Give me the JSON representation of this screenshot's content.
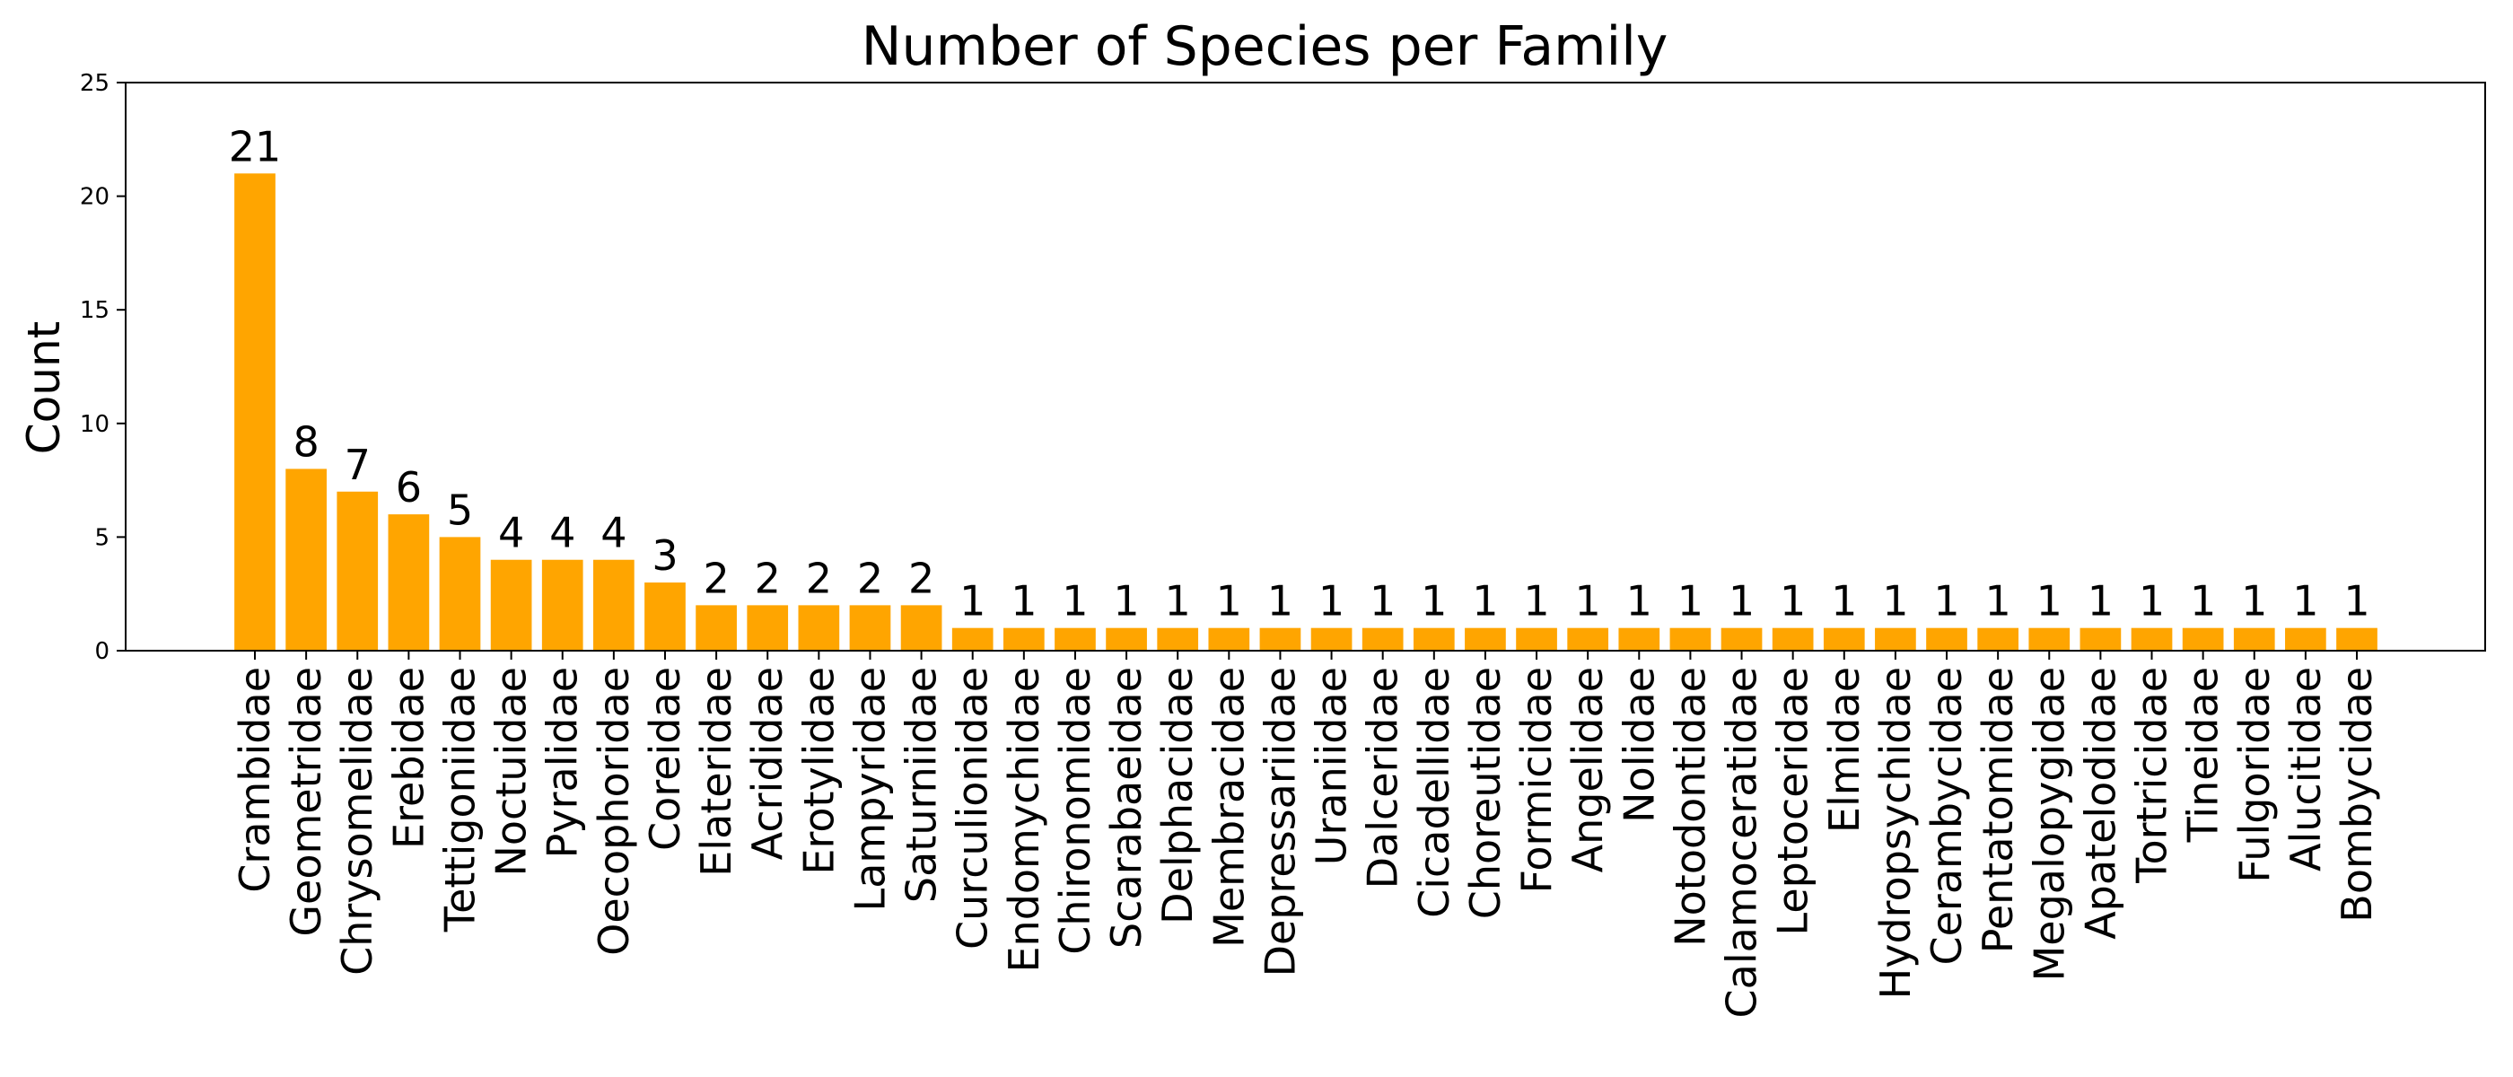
{
  "chart_data": {
    "type": "bar",
    "title": "Number of Species per Family",
    "xlabel": "",
    "ylabel": "Count",
    "ylim": [
      0,
      25
    ],
    "yticks": [
      0,
      5,
      10,
      15,
      20,
      25
    ],
    "bar_color": "#ffa500",
    "grid": false,
    "categories": [
      "Crambidae",
      "Geometridae",
      "Chrysomelidae",
      "Erebidae",
      "Tettigoniidae",
      "Noctuidae",
      "Pyralidae",
      "Oecophoridae",
      "Coreidae",
      "Elateridae",
      "Acrididae",
      "Erotylidae",
      "Lampyridae",
      "Saturniidae",
      "Curculionidae",
      "Endomychidae",
      "Chironomidae",
      "Scarabaeidae",
      "Delphacidae",
      "Membracidae",
      "Depressariidae",
      "Uraniidae",
      "Dalceridae",
      "Cicadellidae",
      "Choreutidae",
      "Formicidae",
      "Angelidae",
      "Nolidae",
      "Notodontidae",
      "Calamoceratidae",
      "Leptoceridae",
      "Elmidae",
      "Hydropsychidae",
      "Cerambycidae",
      "Pentatomidae",
      "Megalopygidae",
      "Apatelodidae",
      "Tortricidae",
      "Tineidae",
      "Fulgoridae",
      "Alucitidae",
      "Bombycidae"
    ],
    "values": [
      21,
      8,
      7,
      6,
      5,
      4,
      4,
      4,
      3,
      2,
      2,
      2,
      2,
      2,
      1,
      1,
      1,
      1,
      1,
      1,
      1,
      1,
      1,
      1,
      1,
      1,
      1,
      1,
      1,
      1,
      1,
      1,
      1,
      1,
      1,
      1,
      1,
      1,
      1,
      1,
      1,
      1
    ]
  }
}
